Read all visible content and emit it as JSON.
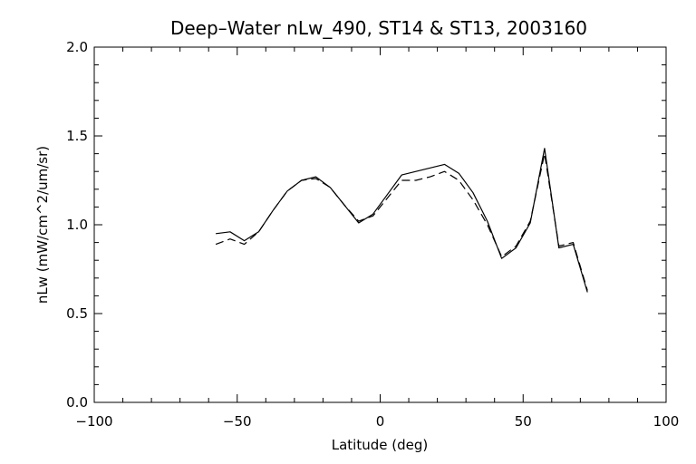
{
  "chart_data": {
    "type": "line",
    "title": "Deep–Water nLw_490, ST14 & ST13, 2003160",
    "xlabel": "Latitude (deg)",
    "ylabel": "nLw (mW/cm^2/um/sr)",
    "xlim": [
      -100,
      100
    ],
    "ylim": [
      0.0,
      2.0
    ],
    "xticks": [
      "−100",
      "−50",
      "0",
      "50",
      "100"
    ],
    "yticks": [
      "0.0",
      "0.5",
      "1.0",
      "1.5",
      "2.0"
    ],
    "grid": false,
    "series": [
      {
        "style": "solid",
        "x": [
          -57.5,
          -52.5,
          -47.5,
          -42.5,
          -37.5,
          -32.5,
          -27.5,
          -22.5,
          -17.5,
          -12.5,
          -7.5,
          -2.5,
          2.5,
          7.5,
          12.5,
          17.5,
          22.5,
          27.5,
          32.5,
          37.5,
          42.5,
          47.5,
          52.5,
          57.5,
          62.5,
          67.5,
          72.5
        ],
        "y": [
          0.95,
          0.96,
          0.91,
          0.96,
          1.08,
          1.19,
          1.25,
          1.27,
          1.21,
          1.11,
          1.01,
          1.06,
          1.17,
          1.28,
          1.3,
          1.32,
          1.34,
          1.29,
          1.18,
          1.02,
          0.81,
          0.87,
          1.01,
          1.43,
          0.87,
          0.89,
          0.62
        ]
      },
      {
        "style": "dashed",
        "x": [
          -57.5,
          -52.5,
          -47.5,
          -42.5,
          -37.5,
          -32.5,
          -27.5,
          -22.5,
          -17.5,
          -12.5,
          -7.5,
          -2.5,
          2.5,
          7.5,
          12.5,
          17.5,
          22.5,
          27.5,
          32.5,
          37.5,
          42.5,
          47.5,
          52.5,
          57.5,
          62.5,
          67.5,
          72.5
        ],
        "y": [
          0.89,
          0.92,
          0.89,
          0.96,
          1.08,
          1.19,
          1.25,
          1.26,
          1.21,
          1.11,
          1.02,
          1.05,
          1.15,
          1.25,
          1.25,
          1.27,
          1.3,
          1.25,
          1.14,
          1.0,
          0.82,
          0.88,
          1.02,
          1.4,
          0.88,
          0.9,
          0.63
        ]
      }
    ]
  }
}
